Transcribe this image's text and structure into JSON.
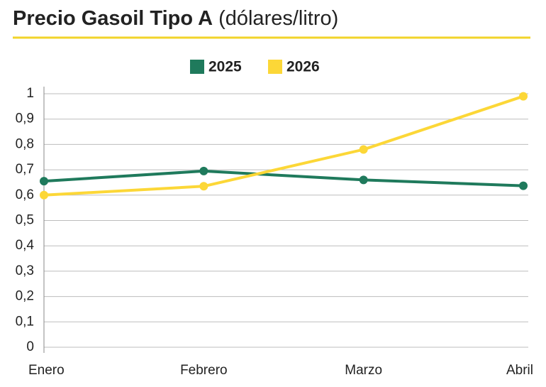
{
  "chart_data": {
    "type": "line",
    "title": "Precio Gasoil Tipo A",
    "subtitle": "(dólares/litro)",
    "categories": [
      "Enero",
      "Febrero",
      "Marzo",
      "Abril"
    ],
    "series": [
      {
        "name": "2025",
        "color": "#1f7a5c",
        "values": [
          0.655,
          0.695,
          0.66,
          0.637
        ]
      },
      {
        "name": "2026",
        "color": "#fcd737",
        "values": [
          0.6,
          0.635,
          0.78,
          0.99
        ]
      }
    ],
    "ylim": [
      0,
      1
    ],
    "yticks": [
      0,
      {
        "value": 0.1,
        "label": "0,1"
      },
      {
        "value": 0.2,
        "label": "0,2"
      },
      {
        "value": 0.3,
        "label": "0,3"
      },
      {
        "value": 0.4,
        "label": "0,4"
      },
      {
        "value": 0.5,
        "label": "0,5"
      },
      {
        "value": 0.6,
        "label": "0,6"
      },
      {
        "value": 0.7,
        "label": "0,7"
      },
      {
        "value": 0.8,
        "label": "0,8"
      },
      {
        "value": 0.9,
        "label": "0,9"
      },
      1
    ],
    "grid": true
  }
}
